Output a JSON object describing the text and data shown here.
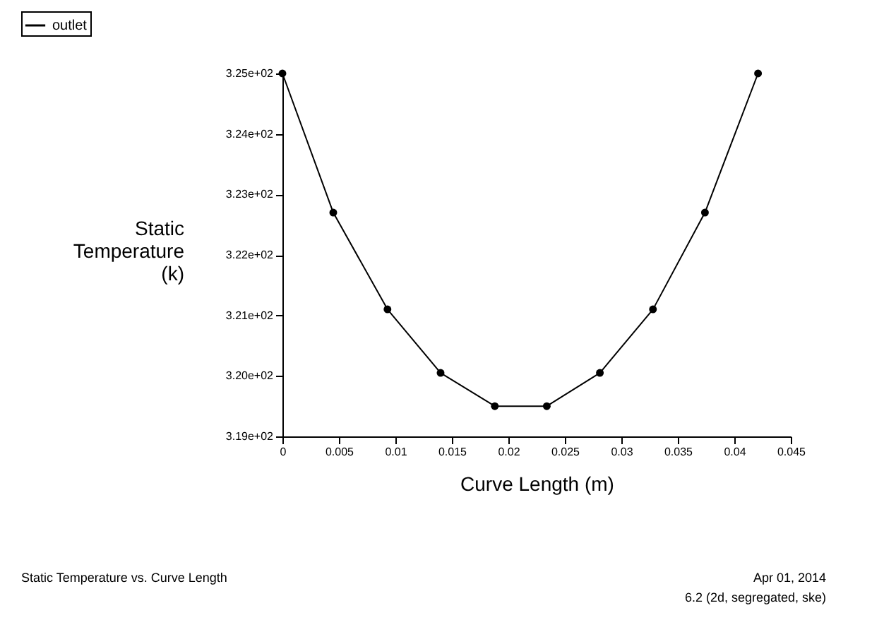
{
  "chart_data": {
    "type": "line",
    "xlabel": "Curve Length (m)",
    "ylabel": "Static Temperature (k)",
    "series": [
      {
        "name": "outlet",
        "color": "#000000",
        "x": [
          0,
          0.0045,
          0.0093,
          0.014,
          0.0188,
          0.0234,
          0.0281,
          0.0328,
          0.0374,
          0.0421
        ],
        "values": [
          325,
          322.7,
          321.1,
          320.05,
          319.5,
          319.5,
          320.05,
          321.1,
          322.7,
          325
        ]
      }
    ],
    "xlim": [
      0,
      0.045
    ],
    "xticks": [
      0,
      0.005,
      0.01,
      0.015,
      0.02,
      0.025,
      0.03,
      0.035,
      0.04,
      0.045
    ],
    "ylim": [
      319,
      325
    ],
    "yticks": [
      {
        "value": 319,
        "label": "3.19e+02"
      },
      {
        "value": 320,
        "label": "3.20e+02"
      },
      {
        "value": 321,
        "label": "3.21e+02"
      },
      {
        "value": 322,
        "label": "3.22e+02"
      },
      {
        "value": 323,
        "label": "3.23e+02"
      },
      {
        "value": 324,
        "label": "3.24e+02"
      },
      {
        "value": 325,
        "label": "3.25e+02"
      }
    ],
    "marker": "circle",
    "line_style": "solid",
    "grid": false,
    "legend": "top left",
    "annotations": [
      "Static Temperature vs. Curve Length",
      "Apr 01, 2014",
      "6.2 (2d, segregated, ske)"
    ]
  }
}
